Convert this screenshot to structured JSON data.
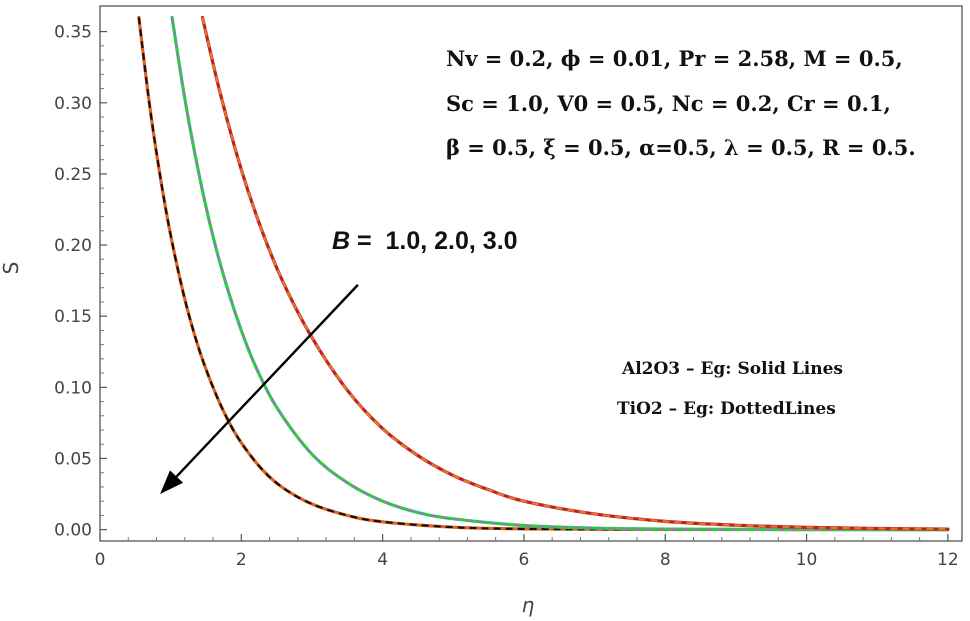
{
  "chart_data": {
    "type": "line",
    "xlabel": "η",
    "ylabel": "S",
    "xlim": [
      0,
      12.2
    ],
    "ylim": [
      -0.008,
      0.368
    ],
    "x_ticks": [
      0,
      2,
      4,
      6,
      8,
      10,
      12
    ],
    "x_tick_labels": [
      "0",
      "2",
      "4",
      "6",
      "8",
      "10",
      "12"
    ],
    "y_ticks": [
      0.0,
      0.05,
      0.1,
      0.15,
      0.2,
      0.25,
      0.3,
      0.35
    ],
    "y_tick_labels": [
      "0.00",
      "0.05",
      "0.10",
      "0.15",
      "0.20",
      "0.25",
      "0.30",
      "0.35"
    ],
    "grid": false,
    "series": [
      {
        "style": "solid+dashed",
        "solid_color": "#e0621e",
        "dashed_color": "#111111",
        "x": [
          0.55,
          0.7,
          0.85,
          1.0,
          1.2,
          1.4,
          1.6,
          1.8,
          2.0,
          2.3,
          2.6,
          3.0,
          3.5,
          4.0,
          5.0,
          6.0,
          8.0,
          10.0,
          12.0
        ],
        "y": [
          0.36,
          0.299,
          0.249,
          0.207,
          0.162,
          0.127,
          0.1,
          0.078,
          0.061,
          0.042,
          0.029,
          0.018,
          0.01,
          0.0055,
          0.0017,
          0.0005,
          0.0001,
          0.0,
          0.0
        ]
      },
      {
        "style": "solid+dashed",
        "solid_color": "#22d63a",
        "dashed_color": "#8a7fb0",
        "x": [
          1.02,
          1.2,
          1.4,
          1.6,
          1.8,
          2.0,
          2.2,
          2.5,
          3.0,
          3.5,
          4.0,
          4.5,
          5.0,
          6.0,
          7.0,
          8.0,
          10.0,
          12.0
        ],
        "y": [
          0.36,
          0.303,
          0.25,
          0.206,
          0.17,
          0.14,
          0.115,
          0.086,
          0.053,
          0.033,
          0.02,
          0.012,
          0.0076,
          0.0029,
          0.0011,
          0.0004,
          0.0001,
          0.0
        ]
      },
      {
        "style": "solid+dashed",
        "solid_color": "#c02020",
        "dashed_color": "#e07a2a",
        "x": [
          1.45,
          1.7,
          2.0,
          2.3,
          2.6,
          3.0,
          3.5,
          4.0,
          4.5,
          5.0,
          5.5,
          6.0,
          7.0,
          8.0,
          9.0,
          10.0,
          11.0,
          12.0
        ],
        "y": [
          0.36,
          0.307,
          0.253,
          0.209,
          0.173,
          0.135,
          0.098,
          0.071,
          0.052,
          0.038,
          0.028,
          0.02,
          0.011,
          0.0058,
          0.0031,
          0.0016,
          0.0008,
          0.0004
        ]
      }
    ],
    "annotations": {
      "params_lines": [
        "Nv = 0.2, ϕ = 0.01, Pr = 2.58, M = 0.5,",
        "Sc = 1.0, V0 = 0.5, Nc = 0.2, Cr = 0.1,",
        "β = 0.5, ξ = 0.5,  α=0.5, λ = 0.5, R = 0.5."
      ],
      "b_symbol": "B",
      "b_values": " =  1.0, 2.0, 3.0",
      "legend_lines": [
        "Al2O3 – Eg: Solid Lines",
        "TiO2 – Eg: DottedLines"
      ],
      "arrow": {
        "from": [
          3.65,
          0.172
        ],
        "to": [
          0.85,
          0.025
        ]
      }
    }
  }
}
